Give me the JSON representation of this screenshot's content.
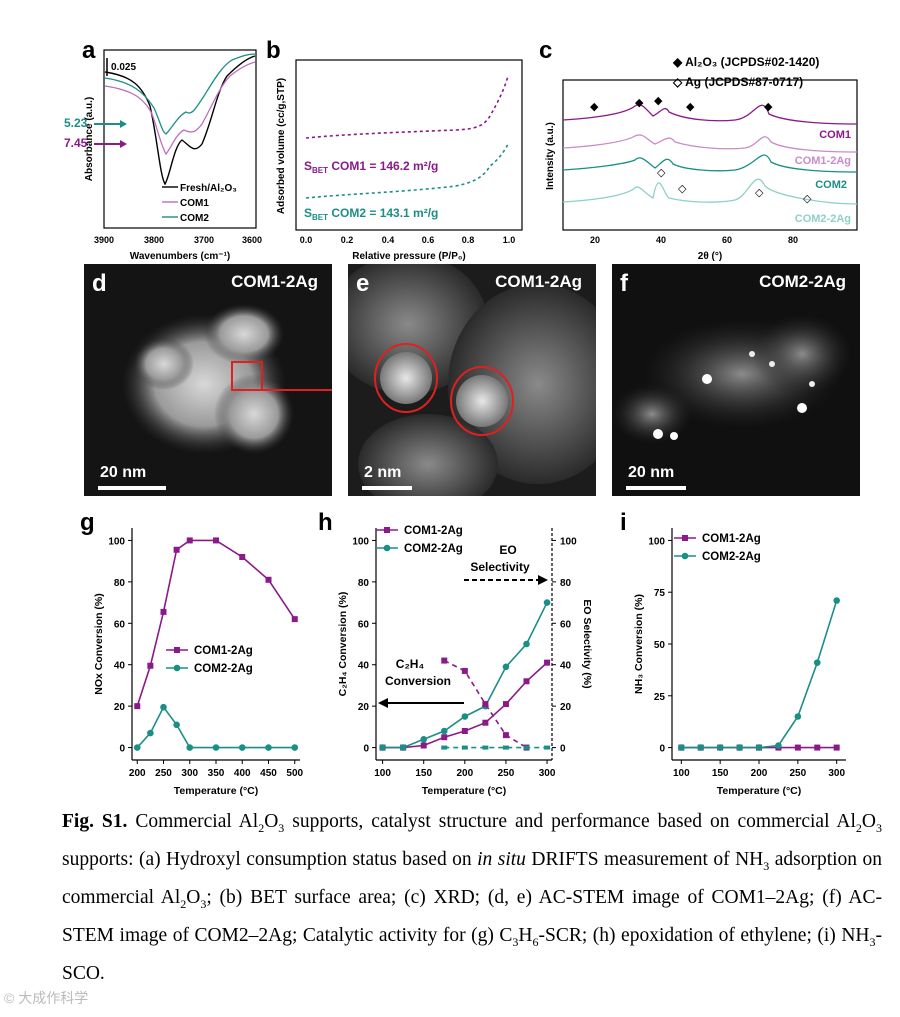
{
  "panels": {
    "a": {
      "label": "a",
      "xlabel": "Wavenumbers (cm⁻¹)",
      "ylabel": "Absorbance (a.u.)",
      "xticks": [
        "3900",
        "3800",
        "3700",
        "3600"
      ],
      "scale": "0.025",
      "ann1": "5.23",
      "ann2": "7.45",
      "legend": [
        "Fresh/Al₂O₃",
        "COM1",
        "COM2"
      ]
    },
    "b": {
      "label": "b",
      "xlabel": "Relative pressure (P/P₀)",
      "ylabel": "Adsorbed volume (cc/g,STP)",
      "xticks": [
        "0.0",
        "0.2",
        "0.4",
        "0.6",
        "0.8",
        "1.0"
      ],
      "bet1": "S",
      "bet1_sub": "BET",
      "bet1_rest": " COM1 = 146.2 m²/g",
      "bet2": "S",
      "bet2_sub": "BET",
      "bet2_rest": " COM2 = 143.1 m²/g"
    },
    "c": {
      "label": "c",
      "xlabel": "2θ (°)",
      "ylabel": "Intensity (a.u.)",
      "xticks": [
        "20",
        "40",
        "60",
        "80"
      ],
      "legend1": "Al₂O₃ (JCPDS#02-1420)",
      "legend2": "Ag (JCPDS#87-0717)",
      "traces": [
        "COM1",
        "COM1-2Ag",
        "COM2",
        "COM2-2Ag"
      ]
    },
    "d": {
      "label": "d",
      "name": "COM1-2Ag",
      "scalebar": "20 nm"
    },
    "e": {
      "label": "e",
      "name": "COM1-2Ag",
      "scalebar": "2 nm"
    },
    "f": {
      "label": "f",
      "name": "COM2-2Ag",
      "scalebar": "20 nm"
    }
  },
  "colors": {
    "purple": "#8a1a8a",
    "teal": "#1a8f85",
    "black": "#000000",
    "pink": "#c98cc9",
    "lightteal": "#8fd0c8",
    "red": "#e02020"
  },
  "chart_data": [
    {
      "panel": "g",
      "type": "line",
      "xlabel": "Temperature (°C)",
      "ylabel": "NOx Conversion (%)",
      "x": [
        200,
        225,
        250,
        275,
        300,
        350,
        400,
        450,
        500
      ],
      "xticks": [
        200,
        250,
        300,
        350,
        400,
        450,
        500
      ],
      "yticks": [
        0,
        20,
        40,
        60,
        80,
        100
      ],
      "xlim": [
        190,
        510
      ],
      "ylim": [
        -6,
        106
      ],
      "series": [
        {
          "name": "COM1-2Ag",
          "values": [
            20,
            39.5,
            65.5,
            95.5,
            100,
            100,
            92,
            81,
            62
          ]
        },
        {
          "name": "COM2-2Ag",
          "values": [
            0,
            7,
            19.5,
            11,
            0,
            0,
            0,
            0,
            0
          ]
        }
      ]
    },
    {
      "panel": "h",
      "type": "line",
      "xlabel": "Temperature (°C)",
      "ylabel": "C₂H₄ Conversion (%)",
      "y2label": "EO Selectivity (%)",
      "x": [
        100,
        125,
        150,
        175,
        200,
        225,
        250,
        275,
        300
      ],
      "xticks": [
        100,
        150,
        200,
        250,
        300
      ],
      "yticks": [
        0,
        20,
        40,
        60,
        80,
        100
      ],
      "xlim": [
        92,
        306
      ],
      "ylim": [
        -6,
        106
      ],
      "series": [
        {
          "name": "COM1-2Ag",
          "values": [
            0,
            0,
            1,
            5,
            8,
            12,
            21,
            32,
            41
          ]
        },
        {
          "name": "COM2-2Ag",
          "values": [
            0,
            0,
            4,
            8,
            15,
            20,
            39,
            50,
            70
          ]
        }
      ],
      "selectivity": [
        {
          "name": "COM1-2Ag",
          "x": [
            175,
            200,
            225,
            250,
            275
          ],
          "values": [
            42,
            37,
            21,
            6,
            0
          ]
        },
        {
          "name": "COM2-2Ag",
          "x": [
            175,
            200,
            225,
            250,
            275,
            300
          ],
          "values": [
            0,
            0,
            0,
            0,
            0,
            0
          ]
        }
      ],
      "ann_eo1": "EO",
      "ann_eo2": "Selectivity",
      "ann_c1": "C₂H₄",
      "ann_c2": "Conversion"
    },
    {
      "panel": "i",
      "type": "line",
      "xlabel": "Temperature (°C)",
      "ylabel": "NH₃ Conversion (%)",
      "x": [
        100,
        125,
        150,
        175,
        200,
        225,
        250,
        275,
        300
      ],
      "xticks": [
        100,
        150,
        200,
        250,
        300
      ],
      "yticks": [
        0,
        25,
        50,
        75,
        100
      ],
      "xlim": [
        88,
        312
      ],
      "ylim": [
        -6,
        106
      ],
      "series": [
        {
          "name": "COM1-2Ag",
          "values": [
            0,
            0,
            0,
            0,
            0,
            0,
            0,
            0,
            0
          ]
        },
        {
          "name": "COM2-2Ag",
          "values": [
            0,
            0,
            0,
            0,
            0,
            1,
            15,
            41,
            71
          ]
        }
      ]
    }
  ],
  "caption": {
    "fig": "Fig. S1.",
    "p1": " Commercial Al",
    "s1": "2",
    "p2": "O",
    "s2": "3",
    "p3": " supports, catalyst structure and performance based on commercial Al",
    "s3": "2",
    "p4": "O",
    "s4": "3",
    "p5": " supports: (a) Hydroxyl consumption status based on ",
    "it1": "in situ",
    "p6": " DRIFTS measurement of NH",
    "s5": "3",
    "p7": " adsorption on commercial Al",
    "s6": "2",
    "p8": "O",
    "s7": "3",
    "p9": "; (b) BET surface area; (c) XRD; (d, e) AC-STEM image of COM1–2Ag; (f) AC-STEM image of COM2–2Ag; Catalytic activity for (g) C",
    "s8": "3",
    "p10": "H",
    "s9": "6",
    "p11": "-SCR; (h) epoxidation of ethylene; (i) NH",
    "s10": "3",
    "p12": "-SCO."
  },
  "watermark": "© 大成作科学"
}
